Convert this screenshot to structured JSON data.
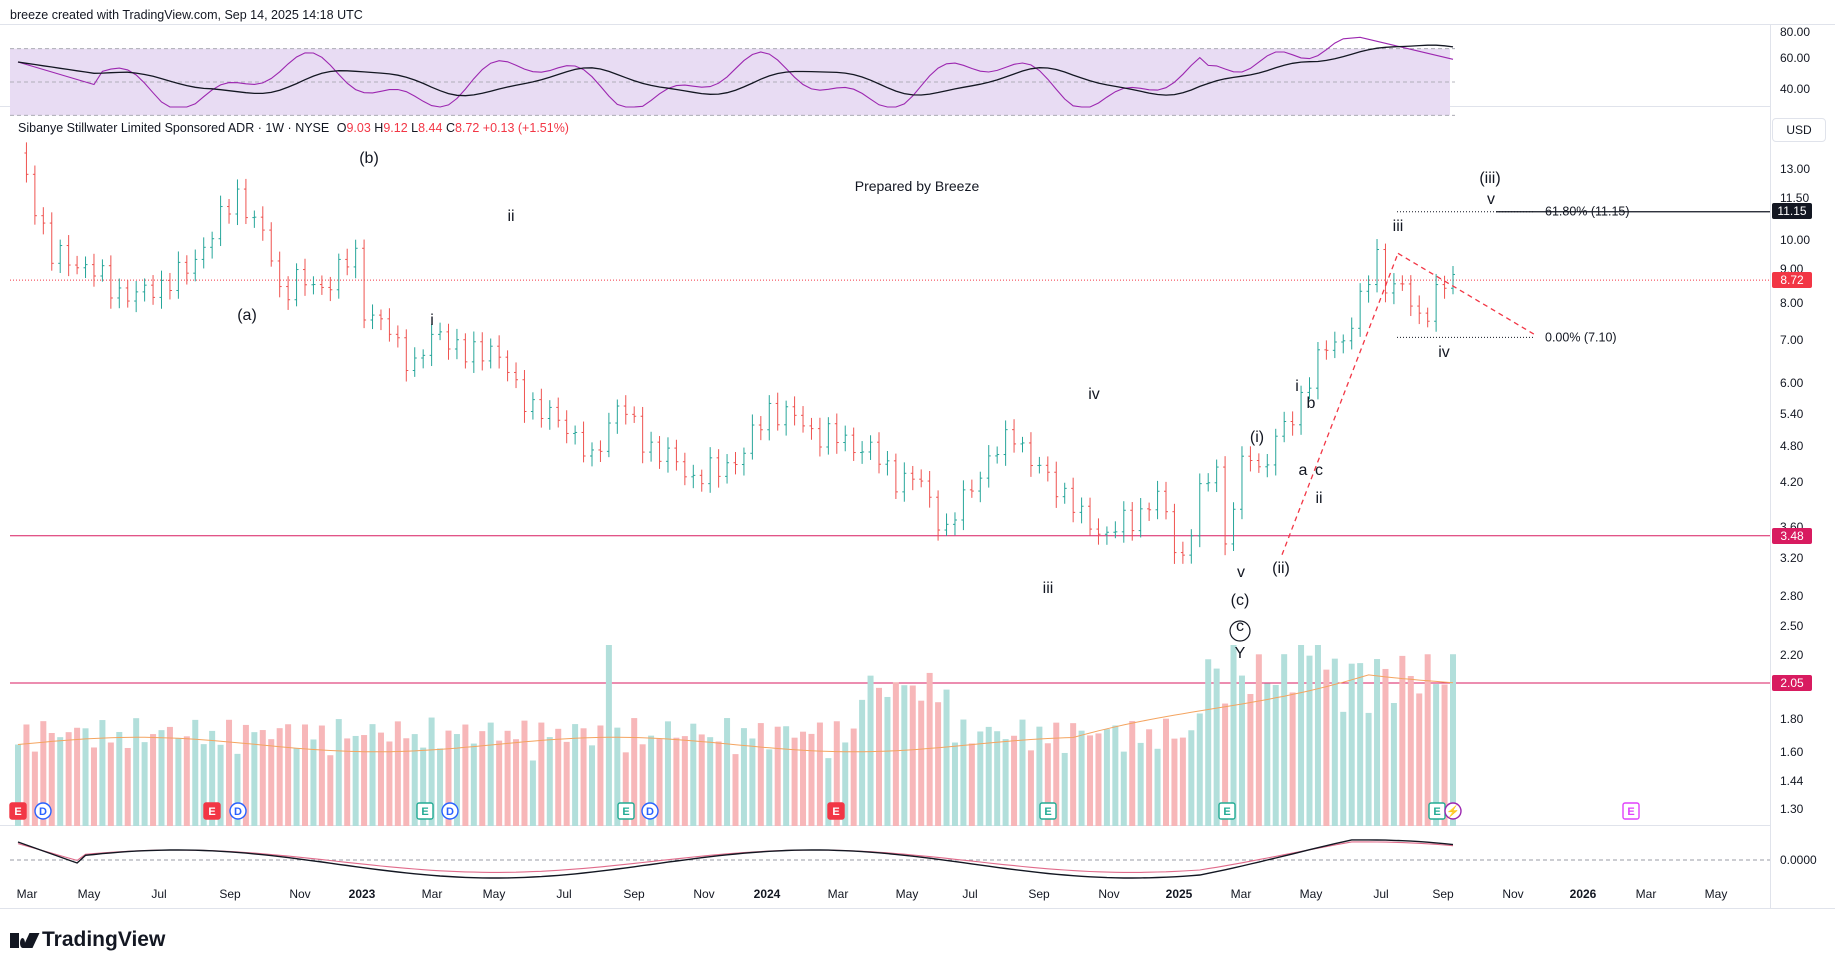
{
  "header_text": "breeze created with TradingView.com, Sep 14, 2025 14:18 UTC",
  "legend": {
    "title": "Sibanye Stillwater Limited Sponsored ADR · 1W · NYSE",
    "o_label": "O",
    "o_val": "9.03",
    "h_label": "H",
    "h_val": "9.12",
    "l_label": "L",
    "l_val": "8.44",
    "c_label": "C",
    "c_val": "8.72",
    "change": "+0.13 (+1.51%)"
  },
  "currency_button": "USD",
  "watermark_note": "Prepared by Breeze",
  "brand": "TradingView",
  "colors": {
    "up": "#26a69a",
    "down": "#ef5350",
    "up_vol": "#b2dfdb",
    "down_vol": "#f7b7b9",
    "rsi_band": "#e8dcf3",
    "rsi_line": "#9c27b0",
    "level_line": "#d81b60",
    "last_price": "#f23645",
    "fib_tag": "#131722"
  },
  "chart_data": {
    "type": "candlestick",
    "price_axis_ticks": [
      "13.00",
      "11.50",
      "10.00",
      "9.00",
      "8.00",
      "7.00",
      "6.00",
      "5.40",
      "4.80",
      "4.20",
      "3.60",
      "3.20",
      "2.80",
      "2.50",
      "2.20",
      "1.80",
      "1.60",
      "1.44",
      "1.30"
    ],
    "price_axis_tags": [
      {
        "label": "11.15",
        "value": 11.15,
        "kind": "fib"
      },
      {
        "label": "8.72",
        "value": 8.72,
        "kind": "last"
      },
      {
        "label": "3.48",
        "value": 3.48,
        "kind": "level"
      },
      {
        "label": "2.05",
        "value": 2.05,
        "kind": "level"
      }
    ],
    "time_axis": [
      "Mar",
      "May",
      "Jul",
      "Sep",
      "Nov",
      "2023",
      "Mar",
      "May",
      "Jul",
      "Sep",
      "Nov",
      "2024",
      "Mar",
      "May",
      "Jul",
      "Sep",
      "Nov",
      "2025",
      "Mar",
      "May",
      "Jul",
      "Sep",
      "Nov",
      "2026",
      "Mar",
      "May"
    ],
    "time_axis_bold": [
      "2023",
      "2024",
      "2025",
      "2026"
    ],
    "rsi_ticks": [
      "80.00",
      "60.00",
      "40.00"
    ],
    "macd_tick": "0.0000",
    "horizontal_levels": [
      3.48,
      2.05
    ],
    "last_price": 8.72,
    "fib_levels": [
      {
        "label": "61.80% (11.15)",
        "value": 11.15
      },
      {
        "label": "0.00% (7.10)",
        "value": 7.1
      }
    ],
    "price_path": [
      [
        0,
        13.5
      ],
      [
        4,
        9.5
      ],
      [
        8,
        9.2
      ],
      [
        11,
        8.5
      ],
      [
        14,
        8.2
      ],
      [
        17,
        8.6
      ],
      [
        20,
        9.0
      ],
      [
        24,
        10.8
      ],
      [
        26,
        11.9
      ],
      [
        28,
        10.8
      ],
      [
        30,
        9.5
      ],
      [
        31,
        8.4
      ],
      [
        33,
        8.7
      ],
      [
        35,
        8.5
      ],
      [
        37,
        8.7
      ],
      [
        39,
        9.3
      ],
      [
        40,
        9.5
      ],
      [
        41,
        7.9
      ],
      [
        44,
        7.2
      ],
      [
        47,
        6.4
      ],
      [
        50,
        7.3
      ],
      [
        53,
        6.6
      ],
      [
        56,
        6.9
      ],
      [
        59,
        5.9
      ],
      [
        62,
        5.4
      ],
      [
        65,
        5.2
      ],
      [
        68,
        4.5
      ],
      [
        71,
        5.6
      ],
      [
        74,
        4.9
      ],
      [
        77,
        4.6
      ],
      [
        80,
        4.3
      ],
      [
        83,
        4.4
      ],
      [
        86,
        4.7
      ],
      [
        89,
        5.5
      ],
      [
        92,
        5.3
      ],
      [
        95,
        5.0
      ],
      [
        98,
        4.9
      ],
      [
        101,
        4.7
      ],
      [
        104,
        4.3
      ],
      [
        107,
        4.2
      ],
      [
        110,
        3.5
      ],
      [
        113,
        4.2
      ],
      [
        116,
        4.7
      ],
      [
        118,
        5.1
      ],
      [
        120,
        4.5
      ],
      [
        123,
        4.2
      ],
      [
        126,
        3.7
      ],
      [
        129,
        3.5
      ],
      [
        132,
        3.7
      ],
      [
        135,
        4.0
      ],
      [
        137,
        3.4
      ],
      [
        138,
        3.2
      ],
      [
        140,
        4.0
      ],
      [
        142,
        4.5
      ],
      [
        143,
        3.4
      ],
      [
        145,
        4.4
      ],
      [
        146,
        4.7
      ],
      [
        147,
        4.4
      ],
      [
        149,
        4.9
      ],
      [
        151,
        5.3
      ],
      [
        153,
        6.2
      ],
      [
        155,
        6.8
      ],
      [
        157,
        7.1
      ],
      [
        159,
        8.0
      ],
      [
        161,
        9.5
      ],
      [
        162,
        8.7
      ],
      [
        164,
        8.4
      ],
      [
        166,
        7.6
      ],
      [
        168,
        8.3
      ],
      [
        170,
        8.72
      ]
    ],
    "volume_labels_count": 0,
    "wave_labels": [
      {
        "text": "(b)"
      },
      {
        "text": "(a)"
      },
      {
        "text": "ii"
      },
      {
        "text": "i"
      },
      {
        "text": "iv"
      },
      {
        "text": "iii"
      },
      {
        "text": "v"
      },
      {
        "text": "(c)"
      },
      {
        "text": "c"
      },
      {
        "text": "Y"
      },
      {
        "text": "(i)"
      },
      {
        "text": "(ii)"
      },
      {
        "text": "i"
      },
      {
        "text": "b"
      },
      {
        "text": "a"
      },
      {
        "text": "c"
      },
      {
        "text": "ii"
      },
      {
        "text": "iii"
      },
      {
        "text": "iv"
      },
      {
        "text": "(iii)"
      },
      {
        "text": "v"
      }
    ],
    "event_markers": [
      {
        "text": "E",
        "kind": "earn-red"
      },
      {
        "text": "D",
        "kind": "div"
      },
      {
        "text": "E",
        "kind": "earn-red"
      },
      {
        "text": "D",
        "kind": "div"
      },
      {
        "text": "E",
        "kind": "earn-green"
      },
      {
        "text": "D",
        "kind": "div"
      },
      {
        "text": "E",
        "kind": "earn-green"
      },
      {
        "text": "D",
        "kind": "div"
      },
      {
        "text": "E",
        "kind": "earn-red"
      },
      {
        "text": "E",
        "kind": "earn-green"
      },
      {
        "text": "E",
        "kind": "earn-green"
      },
      {
        "text": "E",
        "kind": "earn-green"
      },
      {
        "text": "⚡",
        "kind": "split"
      },
      {
        "text": "E",
        "kind": "earn-future"
      }
    ]
  }
}
